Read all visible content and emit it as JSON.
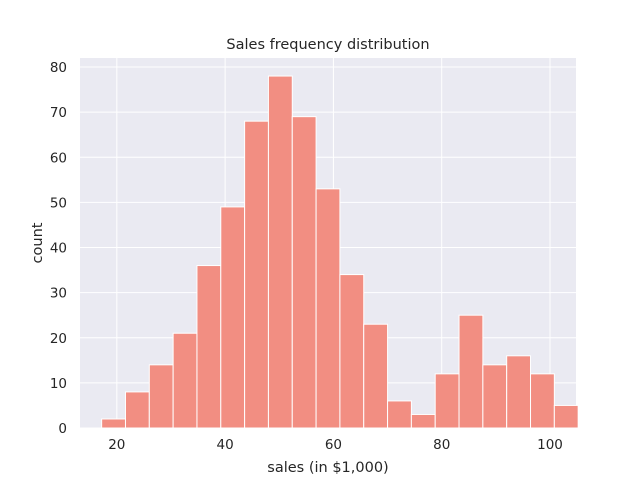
{
  "chart_data": {
    "type": "bar",
    "title": "Sales frequency distribution",
    "xlabel": "sales (in $1,000)",
    "ylabel": "count",
    "bins": [
      {
        "start": 17.2,
        "end": 21.6,
        "count": 2
      },
      {
        "start": 21.6,
        "end": 26.0,
        "count": 8
      },
      {
        "start": 26.0,
        "end": 30.4,
        "count": 14
      },
      {
        "start": 30.4,
        "end": 34.8,
        "count": 21
      },
      {
        "start": 34.8,
        "end": 39.2,
        "count": 36
      },
      {
        "start": 39.2,
        "end": 43.6,
        "count": 49
      },
      {
        "start": 43.6,
        "end": 48.0,
        "count": 68
      },
      {
        "start": 48.0,
        "end": 52.4,
        "count": 78
      },
      {
        "start": 52.4,
        "end": 56.8,
        "count": 69
      },
      {
        "start": 56.8,
        "end": 61.2,
        "count": 53
      },
      {
        "start": 61.2,
        "end": 65.6,
        "count": 34
      },
      {
        "start": 65.6,
        "end": 70.0,
        "count": 23
      },
      {
        "start": 70.0,
        "end": 74.4,
        "count": 6
      },
      {
        "start": 74.4,
        "end": 78.8,
        "count": 3
      },
      {
        "start": 78.8,
        "end": 83.2,
        "count": 12
      },
      {
        "start": 83.2,
        "end": 87.6,
        "count": 25
      },
      {
        "start": 87.6,
        "end": 92.0,
        "count": 14
      },
      {
        "start": 92.0,
        "end": 96.4,
        "count": 16
      },
      {
        "start": 96.4,
        "end": 100.8,
        "count": 12
      },
      {
        "start": 100.8,
        "end": 105.2,
        "count": 5
      }
    ],
    "xlim": [
      13.2,
      104.8
    ],
    "ylim": [
      0,
      82
    ],
    "xticks": [
      20,
      40,
      60,
      80,
      100
    ],
    "yticks": [
      0,
      10,
      20,
      30,
      40,
      50,
      60,
      70,
      80
    ],
    "grid": true,
    "legend": "none",
    "colors": {
      "bar_fill": "#f28e82",
      "bar_edge": "#ffffff",
      "plot_background": "#eaeaf2",
      "grid": "#ffffff"
    }
  }
}
